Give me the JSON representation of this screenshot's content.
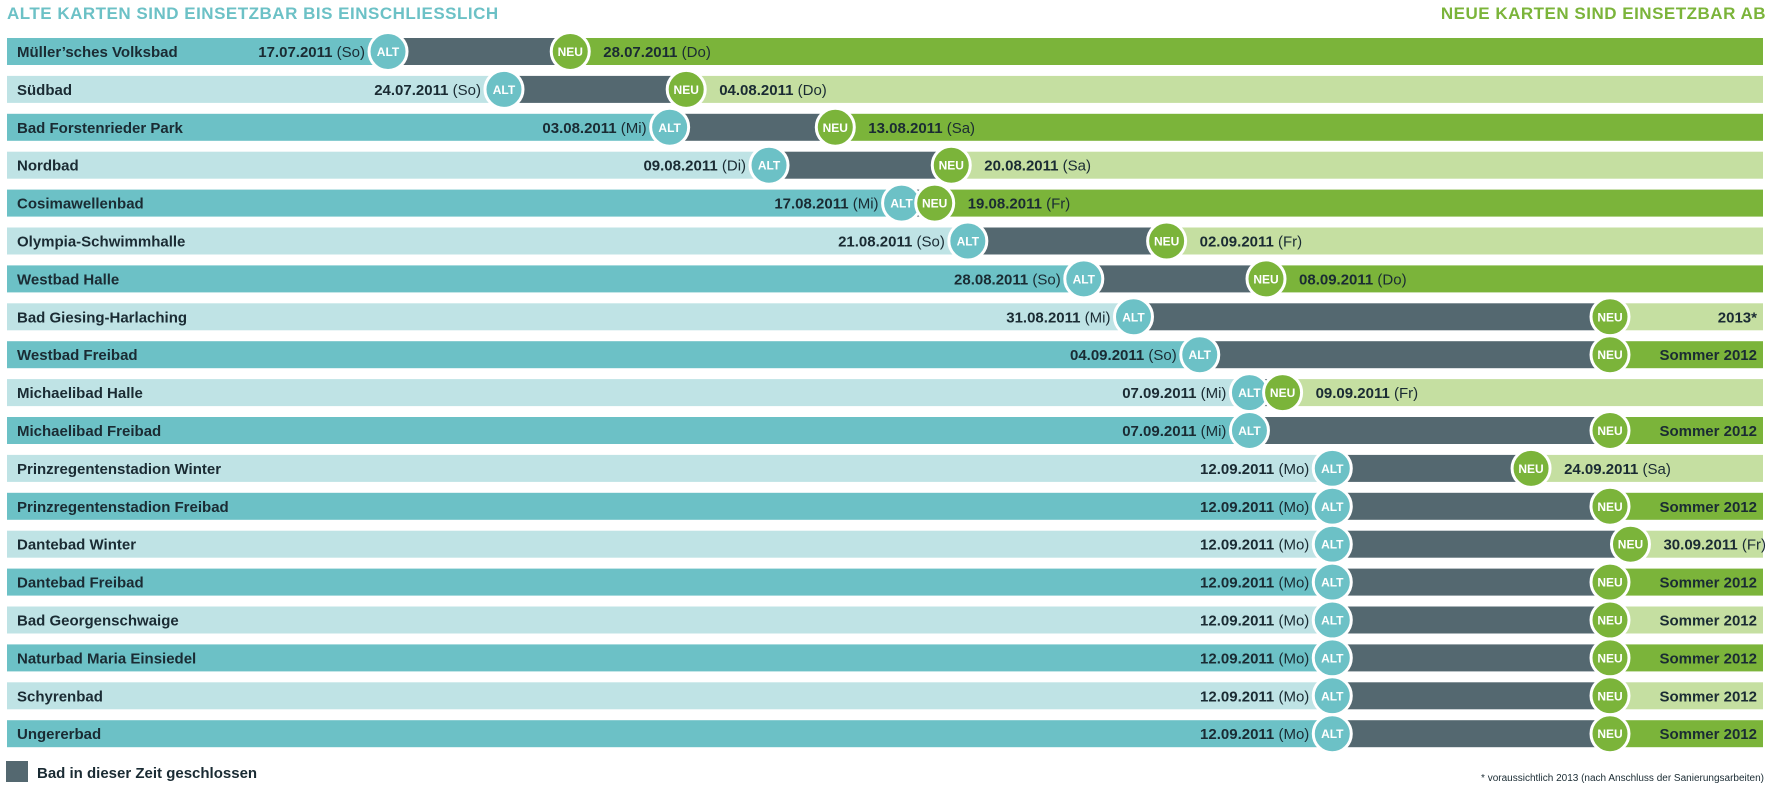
{
  "header": {
    "left": "ALTE KARTEN SIND EINSETZBAR BIS EINSCHLIESSLICH",
    "right": "NEUE KARTEN SIND EINSETZBAR AB"
  },
  "colors": {
    "teal": "#6cc1c6",
    "teal_light": "#bfe3e5",
    "closed": "#546870",
    "green": "#7bb43a",
    "green_light": "#c5dfa1",
    "header_left": "#6cc1c6",
    "header_right": "#7bb43a"
  },
  "badges": {
    "old": "ALT",
    "new": "NEU"
  },
  "legend": {
    "label": "Bad in dieser Zeit geschlossen"
  },
  "footnote": "* voraussichtlich 2013 (nach Anschluss der Sanierungsarbeiten)",
  "chart_data": {
    "type": "gantt",
    "x_start": "2011-06-24",
    "x_end": "2011-10-08",
    "rows": [
      {
        "name": "Müller’sches Volksbad",
        "alt_date": "17.07.2011",
        "alt_day": "(So)",
        "neu_date": "28.07.2011",
        "neu_day": "(Do)",
        "alt_x": "2011-07-17",
        "neu_x": "2011-07-28"
      },
      {
        "name": "Südbad",
        "alt_date": "24.07.2011",
        "alt_day": "(So)",
        "neu_date": "04.08.2011",
        "neu_day": "(Do)",
        "alt_x": "2011-07-24",
        "neu_x": "2011-08-04"
      },
      {
        "name": "Bad Forstenrieder Park",
        "alt_date": "03.08.2011",
        "alt_day": "(Mi)",
        "neu_date": "13.08.2011",
        "neu_day": "(Sa)",
        "alt_x": "2011-08-03",
        "neu_x": "2011-08-13"
      },
      {
        "name": "Nordbad",
        "alt_date": "09.08.2011",
        "alt_day": "(Di)",
        "neu_date": "20.08.2011",
        "neu_day": "(Sa)",
        "alt_x": "2011-08-09",
        "neu_x": "2011-08-20"
      },
      {
        "name": "Cosimawellenbad",
        "alt_date": "17.08.2011",
        "alt_day": "(Mi)",
        "neu_date": "19.08.2011",
        "neu_day": "(Fr)",
        "alt_x": "2011-08-17",
        "neu_x": "2011-08-19"
      },
      {
        "name": "Olympia-Schwimmhalle",
        "alt_date": "21.08.2011",
        "alt_day": "(So)",
        "neu_date": "02.09.2011",
        "neu_day": "(Fr)",
        "alt_x": "2011-08-21",
        "neu_x": "2011-09-02"
      },
      {
        "name": "Westbad Halle",
        "alt_date": "28.08.2011",
        "alt_day": "(So)",
        "neu_date": "08.09.2011",
        "neu_day": "(Do)",
        "alt_x": "2011-08-28",
        "neu_x": "2011-09-08"
      },
      {
        "name": "Bad Giesing-Harlaching",
        "alt_date": "31.08.2011",
        "alt_day": "(Mi)",
        "neu_date": "2013*",
        "neu_day": "",
        "alt_x": "2011-08-31",
        "neu_x": "end"
      },
      {
        "name": "Westbad Freibad",
        "alt_date": "04.09.2011",
        "alt_day": "(So)",
        "neu_date": "Sommer 2012",
        "neu_day": "",
        "alt_x": "2011-09-04",
        "neu_x": "end"
      },
      {
        "name": "Michaelibad Halle",
        "alt_date": "07.09.2011",
        "alt_day": "(Mi)",
        "neu_date": "09.09.2011",
        "neu_day": "(Fr)",
        "alt_x": "2011-09-07",
        "neu_x": "2011-09-09"
      },
      {
        "name": "Michaelibad Freibad",
        "alt_date": "07.09.2011",
        "alt_day": "(Mi)",
        "neu_date": "Sommer 2012",
        "neu_day": "",
        "alt_x": "2011-09-07",
        "neu_x": "end"
      },
      {
        "name": "Prinzregentenstadion Winter",
        "alt_date": "12.09.2011",
        "alt_day": "(Mo)",
        "neu_date": "24.09.2011",
        "neu_day": "(Sa)",
        "alt_x": "2011-09-12",
        "neu_x": "2011-09-24"
      },
      {
        "name": "Prinzregentenstadion Freibad",
        "alt_date": "12.09.2011",
        "alt_day": "(Mo)",
        "neu_date": "Sommer 2012",
        "neu_day": "",
        "alt_x": "2011-09-12",
        "neu_x": "end"
      },
      {
        "name": "Dantebad Winter",
        "alt_date": "12.09.2011",
        "alt_day": "(Mo)",
        "neu_date": "30.09.2011",
        "neu_day": "(Fr)",
        "alt_x": "2011-09-12",
        "neu_x": "2011-09-30"
      },
      {
        "name": "Dantebad Freibad",
        "alt_date": "12.09.2011",
        "alt_day": "(Mo)",
        "neu_date": "Sommer 2012",
        "neu_day": "",
        "alt_x": "2011-09-12",
        "neu_x": "end"
      },
      {
        "name": "Bad Georgenschwaige",
        "alt_date": "12.09.2011",
        "alt_day": "(Mo)",
        "neu_date": "Sommer 2012",
        "neu_day": "",
        "alt_x": "2011-09-12",
        "neu_x": "end"
      },
      {
        "name": "Naturbad Maria Einsiedel",
        "alt_date": "12.09.2011",
        "alt_day": "(Mo)",
        "neu_date": "Sommer 2012",
        "neu_day": "",
        "alt_x": "2011-09-12",
        "neu_x": "end"
      },
      {
        "name": "Schyrenbad",
        "alt_date": "12.09.2011",
        "alt_day": "(Mo)",
        "neu_date": "Sommer 2012",
        "neu_day": "",
        "alt_x": "2011-09-12",
        "neu_x": "end"
      },
      {
        "name": "Ungererbad",
        "alt_date": "12.09.2011",
        "alt_day": "(Mo)",
        "neu_date": "Sommer 2012",
        "neu_day": "",
        "alt_x": "2011-09-12",
        "neu_x": "end"
      }
    ]
  }
}
